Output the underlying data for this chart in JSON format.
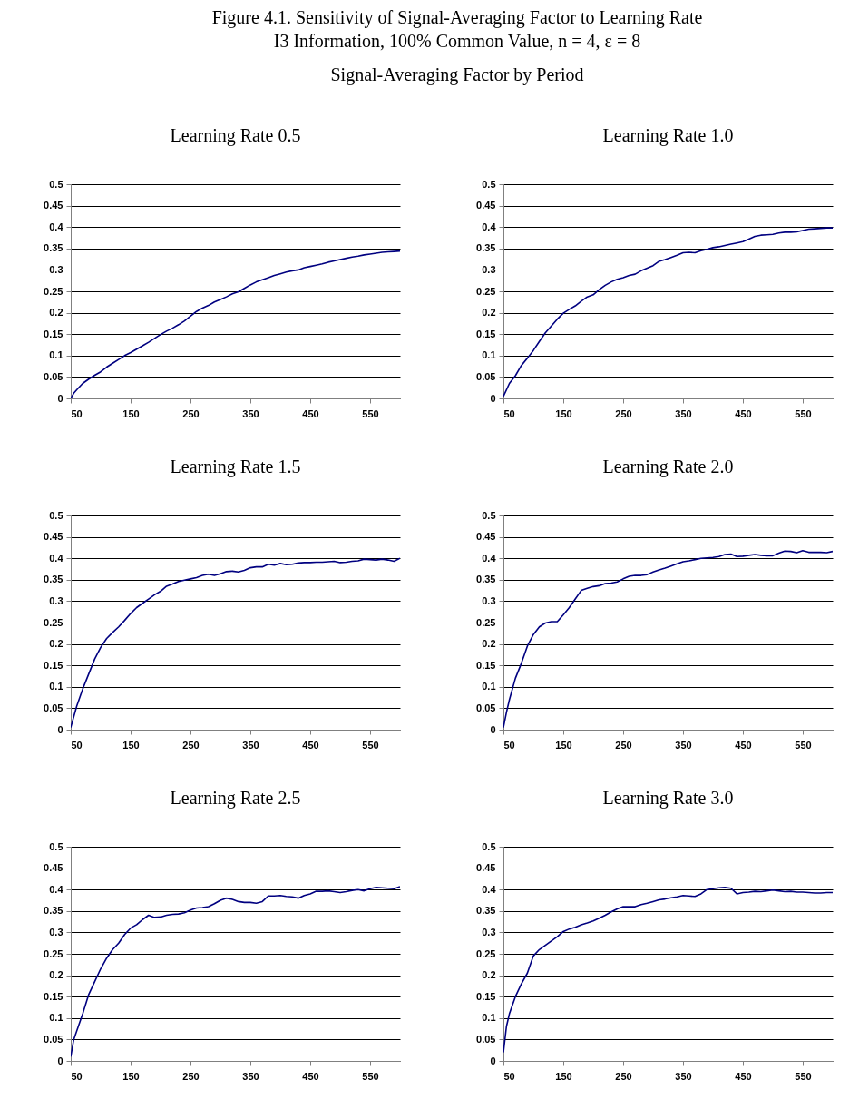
{
  "chart_data": [
    {
      "type": "other",
      "title": "Figure 4.1.  Sensitivity of Signal-Averaging Factor to Learning Rate",
      "subtitle": "I3 Information, 100% Common Value, n = 4, ε = 8",
      "annotations": [
        "Signal-Averaging Factor by Period"
      ]
    },
    {
      "type": "line",
      "title": "Learning Rate 0.5",
      "xlim": [
        50,
        600
      ],
      "xticks": [
        50,
        150,
        250,
        350,
        450,
        550
      ],
      "ylim": [
        0,
        0.5
      ],
      "yticks": [
        0,
        0.05,
        0.1,
        0.15,
        0.2,
        0.25,
        0.3,
        0.35,
        0.4,
        0.45,
        0.5
      ],
      "grid": "y",
      "line_style": "solid",
      "x": [
        50,
        55,
        60,
        70,
        80,
        90,
        100,
        110,
        120,
        130,
        140,
        150,
        160,
        170,
        180,
        190,
        200,
        210,
        220,
        230,
        240,
        250,
        260,
        270,
        280,
        290,
        300,
        310,
        320,
        330,
        340,
        350,
        360,
        370,
        380,
        390,
        400,
        410,
        420,
        430,
        440,
        450,
        460,
        470,
        480,
        490,
        500,
        510,
        520,
        530,
        540,
        550,
        560,
        570,
        580,
        590,
        600
      ],
      "series": [
        {
          "color": "#000080",
          "values": [
            0.0,
            0.012,
            0.02,
            0.035,
            0.045,
            0.054,
            0.062,
            0.073,
            0.082,
            0.091,
            0.1,
            0.107,
            0.115,
            0.123,
            0.131,
            0.14,
            0.149,
            0.157,
            0.164,
            0.172,
            0.181,
            0.192,
            0.203,
            0.211,
            0.217,
            0.225,
            0.231,
            0.237,
            0.244,
            0.249,
            0.257,
            0.265,
            0.272,
            0.277,
            0.282,
            0.287,
            0.291,
            0.295,
            0.298,
            0.3,
            0.305,
            0.308,
            0.311,
            0.314,
            0.318,
            0.321,
            0.324,
            0.327,
            0.33,
            0.332,
            0.335,
            0.337,
            0.339,
            0.341,
            0.342,
            0.343,
            0.344
          ]
        }
      ]
    },
    {
      "type": "line",
      "title": "Learning Rate 1.0",
      "xlim": [
        50,
        600
      ],
      "xticks": [
        50,
        150,
        250,
        350,
        450,
        550
      ],
      "ylim": [
        0,
        0.5
      ],
      "yticks": [
        0,
        0.05,
        0.1,
        0.15,
        0.2,
        0.25,
        0.3,
        0.35,
        0.4,
        0.45,
        0.5
      ],
      "grid": "y",
      "line_style": "solid",
      "x": [
        50,
        55,
        60,
        70,
        80,
        90,
        100,
        110,
        120,
        130,
        140,
        150,
        160,
        170,
        180,
        190,
        200,
        210,
        220,
        230,
        240,
        250,
        260,
        270,
        280,
        290,
        300,
        310,
        320,
        330,
        340,
        350,
        360,
        370,
        380,
        390,
        400,
        410,
        420,
        430,
        440,
        450,
        460,
        470,
        480,
        490,
        500,
        510,
        520,
        530,
        540,
        550,
        560,
        570,
        580,
        590,
        600
      ],
      "series": [
        {
          "color": "#000080",
          "values": [
            0.005,
            0.02,
            0.035,
            0.053,
            0.077,
            0.094,
            0.112,
            0.133,
            0.153,
            0.169,
            0.185,
            0.199,
            0.208,
            0.216,
            0.227,
            0.237,
            0.242,
            0.254,
            0.264,
            0.272,
            0.278,
            0.282,
            0.287,
            0.29,
            0.298,
            0.304,
            0.31,
            0.32,
            0.324,
            0.329,
            0.334,
            0.34,
            0.341,
            0.34,
            0.345,
            0.348,
            0.352,
            0.354,
            0.357,
            0.36,
            0.363,
            0.366,
            0.372,
            0.378,
            0.381,
            0.382,
            0.383,
            0.386,
            0.388,
            0.388,
            0.389,
            0.392,
            0.395,
            0.396,
            0.397,
            0.398,
            0.398
          ]
        }
      ]
    },
    {
      "type": "line",
      "title": "Learning Rate 1.5",
      "xlim": [
        50,
        600
      ],
      "xticks": [
        50,
        150,
        250,
        350,
        450,
        550
      ],
      "ylim": [
        0,
        0.5
      ],
      "yticks": [
        0,
        0.05,
        0.1,
        0.15,
        0.2,
        0.25,
        0.3,
        0.35,
        0.4,
        0.45,
        0.5
      ],
      "grid": "y",
      "line_style": "solid",
      "x": [
        50,
        55,
        60,
        70,
        80,
        90,
        100,
        110,
        120,
        130,
        140,
        150,
        160,
        170,
        180,
        190,
        200,
        210,
        220,
        230,
        240,
        250,
        260,
        270,
        280,
        290,
        300,
        310,
        320,
        330,
        340,
        350,
        360,
        370,
        380,
        390,
        400,
        410,
        420,
        430,
        440,
        450,
        460,
        470,
        480,
        490,
        500,
        510,
        520,
        530,
        540,
        550,
        560,
        570,
        580,
        590,
        600
      ],
      "series": [
        {
          "color": "#000080",
          "values": [
            0.005,
            0.03,
            0.055,
            0.095,
            0.13,
            0.165,
            0.192,
            0.213,
            0.227,
            0.24,
            0.255,
            0.271,
            0.285,
            0.295,
            0.305,
            0.315,
            0.323,
            0.335,
            0.34,
            0.346,
            0.349,
            0.352,
            0.355,
            0.36,
            0.363,
            0.36,
            0.364,
            0.369,
            0.37,
            0.368,
            0.372,
            0.378,
            0.38,
            0.38,
            0.386,
            0.384,
            0.388,
            0.385,
            0.386,
            0.389,
            0.39,
            0.39,
            0.391,
            0.391,
            0.392,
            0.393,
            0.39,
            0.391,
            0.393,
            0.394,
            0.398,
            0.397,
            0.396,
            0.398,
            0.396,
            0.393,
            0.4
          ]
        }
      ]
    },
    {
      "type": "line",
      "title": "Learning Rate 2.0",
      "xlim": [
        50,
        600
      ],
      "xticks": [
        50,
        150,
        250,
        350,
        450,
        550
      ],
      "ylim": [
        0,
        0.5
      ],
      "yticks": [
        0,
        0.05,
        0.1,
        0.15,
        0.2,
        0.25,
        0.3,
        0.35,
        0.4,
        0.45,
        0.5
      ],
      "grid": "y",
      "line_style": "solid",
      "x": [
        50,
        55,
        60,
        70,
        80,
        90,
        100,
        110,
        120,
        130,
        140,
        150,
        160,
        170,
        180,
        190,
        200,
        210,
        220,
        230,
        240,
        250,
        260,
        270,
        280,
        290,
        300,
        310,
        320,
        330,
        340,
        350,
        360,
        370,
        380,
        390,
        400,
        410,
        420,
        430,
        440,
        450,
        460,
        470,
        480,
        490,
        500,
        510,
        520,
        530,
        540,
        550,
        560,
        570,
        580,
        590,
        600
      ],
      "series": [
        {
          "color": "#000080",
          "values": [
            0.005,
            0.04,
            0.07,
            0.12,
            0.155,
            0.195,
            0.222,
            0.24,
            0.249,
            0.252,
            0.252,
            0.268,
            0.285,
            0.305,
            0.325,
            0.33,
            0.334,
            0.336,
            0.341,
            0.342,
            0.345,
            0.352,
            0.358,
            0.36,
            0.36,
            0.362,
            0.368,
            0.373,
            0.377,
            0.382,
            0.387,
            0.392,
            0.394,
            0.397,
            0.4,
            0.401,
            0.402,
            0.404,
            0.409,
            0.41,
            0.404,
            0.405,
            0.407,
            0.409,
            0.407,
            0.406,
            0.406,
            0.412,
            0.417,
            0.416,
            0.413,
            0.418,
            0.414,
            0.414,
            0.414,
            0.413,
            0.416
          ]
        }
      ]
    },
    {
      "type": "line",
      "title": "Learning Rate 2.5",
      "xlim": [
        50,
        600
      ],
      "xticks": [
        50,
        150,
        250,
        350,
        450,
        550
      ],
      "ylim": [
        0,
        0.5
      ],
      "yticks": [
        0,
        0.05,
        0.1,
        0.15,
        0.2,
        0.25,
        0.3,
        0.35,
        0.4,
        0.45,
        0.5
      ],
      "grid": "y",
      "line_style": "solid",
      "x": [
        50,
        55,
        60,
        70,
        80,
        90,
        100,
        110,
        120,
        130,
        140,
        150,
        160,
        170,
        180,
        190,
        200,
        210,
        220,
        230,
        240,
        250,
        260,
        270,
        280,
        290,
        300,
        310,
        320,
        330,
        340,
        350,
        360,
        370,
        380,
        390,
        400,
        410,
        420,
        430,
        440,
        450,
        460,
        470,
        480,
        490,
        500,
        510,
        520,
        530,
        540,
        550,
        560,
        570,
        580,
        590,
        600
      ],
      "series": [
        {
          "color": "#000080",
          "values": [
            0.01,
            0.05,
            0.07,
            0.11,
            0.155,
            0.185,
            0.215,
            0.24,
            0.26,
            0.275,
            0.295,
            0.31,
            0.318,
            0.33,
            0.34,
            0.335,
            0.336,
            0.34,
            0.342,
            0.343,
            0.346,
            0.352,
            0.357,
            0.358,
            0.36,
            0.367,
            0.375,
            0.38,
            0.377,
            0.372,
            0.37,
            0.37,
            0.368,
            0.372,
            0.385,
            0.385,
            0.386,
            0.384,
            0.383,
            0.38,
            0.386,
            0.39,
            0.396,
            0.396,
            0.397,
            0.395,
            0.393,
            0.395,
            0.398,
            0.4,
            0.397,
            0.402,
            0.405,
            0.404,
            0.403,
            0.402,
            0.407
          ]
        }
      ]
    },
    {
      "type": "line",
      "title": "Learning Rate 3.0",
      "xlim": [
        50,
        600
      ],
      "xticks": [
        50,
        150,
        250,
        350,
        450,
        550
      ],
      "ylim": [
        0,
        0.5
      ],
      "yticks": [
        0,
        0.05,
        0.1,
        0.15,
        0.2,
        0.25,
        0.3,
        0.35,
        0.4,
        0.45,
        0.5
      ],
      "grid": "y",
      "line_style": "solid",
      "x": [
        50,
        55,
        60,
        70,
        80,
        90,
        100,
        110,
        120,
        130,
        140,
        150,
        160,
        170,
        180,
        190,
        200,
        210,
        220,
        230,
        240,
        250,
        260,
        270,
        280,
        290,
        300,
        310,
        320,
        330,
        340,
        350,
        360,
        370,
        380,
        390,
        400,
        410,
        420,
        430,
        440,
        450,
        460,
        470,
        480,
        490,
        500,
        510,
        520,
        530,
        540,
        550,
        560,
        570,
        580,
        590,
        600
      ],
      "series": [
        {
          "color": "#000080",
          "values": [
            0.02,
            0.08,
            0.11,
            0.15,
            0.18,
            0.205,
            0.245,
            0.26,
            0.27,
            0.28,
            0.29,
            0.302,
            0.308,
            0.312,
            0.318,
            0.322,
            0.327,
            0.333,
            0.34,
            0.348,
            0.355,
            0.36,
            0.36,
            0.36,
            0.365,
            0.368,
            0.372,
            0.376,
            0.378,
            0.381,
            0.383,
            0.386,
            0.385,
            0.384,
            0.39,
            0.4,
            0.402,
            0.404,
            0.405,
            0.403,
            0.39,
            0.393,
            0.394,
            0.396,
            0.395,
            0.397,
            0.399,
            0.397,
            0.395,
            0.396,
            0.394,
            0.394,
            0.393,
            0.392,
            0.392,
            0.393,
            0.393
          ]
        }
      ]
    }
  ]
}
